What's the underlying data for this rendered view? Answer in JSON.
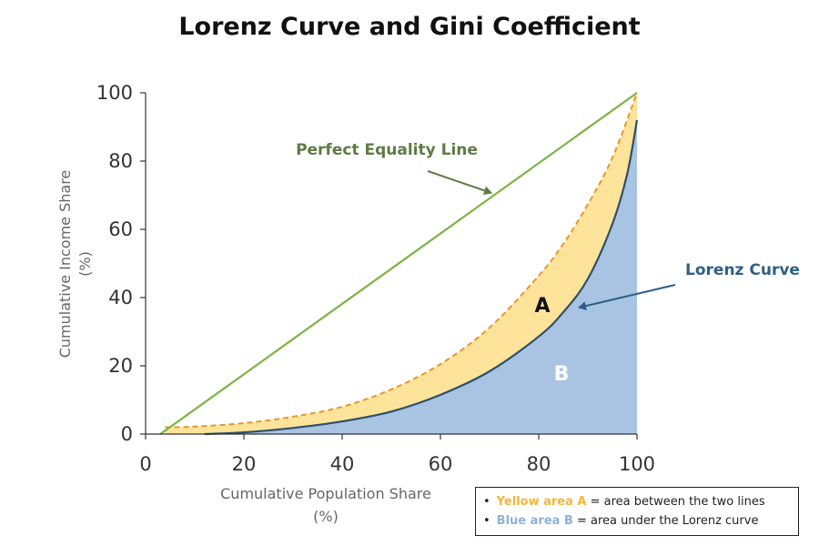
{
  "chart_data": {
    "type": "area",
    "title": "Lorenz Curve and Gini Coefficient",
    "xlabel": "Cumulative Population Share\n(%)",
    "ylabel": "Cumulative Income Share\n(%)",
    "xlim": [
      0,
      100
    ],
    "ylim": [
      0,
      100
    ],
    "xticks": [
      0,
      20,
      40,
      60,
      80,
      100
    ],
    "yticks": [
      0,
      20,
      40,
      60,
      80,
      100
    ],
    "grid": false,
    "colors": {
      "equality_line": "#7cb342",
      "lorenz_curve": "#2f4f6a",
      "dashed_line": "#e8962a",
      "area_a": "#fde49a",
      "area_b": "#a9c4e3",
      "annotation_equality": "#5f7a46",
      "annotation_lorenz": "#2d5f86"
    },
    "series": [
      {
        "style": "solid line",
        "x": [
          3,
          100
        ],
        "y": [
          0,
          100
        ]
      },
      {
        "style": "solid curve, blue fill below",
        "x": [
          12,
          20,
          30,
          40,
          50,
          60,
          70,
          80,
          85,
          90,
          95,
          98,
          100
        ],
        "y": [
          0,
          0.5,
          1.8,
          3.7,
          6.6,
          11.5,
          18.4,
          28.6,
          35.7,
          45.5,
          61.6,
          76.2,
          92
        ]
      },
      {
        "style": "dashed curve, yellow fill between curves",
        "x": [
          4,
          10,
          20,
          30,
          40,
          50,
          60,
          70,
          80,
          85,
          90,
          95,
          100
        ],
        "y": [
          2,
          2.2,
          3.2,
          5.1,
          8,
          13.1,
          20.5,
          31.2,
          46.4,
          55.7,
          67.3,
          81,
          100
        ]
      }
    ],
    "annotations": {
      "equality_label": "Perfect Equality Line",
      "lorenz_label": "Lorenz Curve",
      "area_a_label": "A",
      "area_b_label": "B"
    }
  },
  "legend_note": {
    "yellow_term": "Yellow area A",
    "yellow_rest": "= area between the two lines",
    "blue_term": "Blue area B",
    "blue_rest": "= area under the Lorenz curve",
    "bullet": "•"
  }
}
